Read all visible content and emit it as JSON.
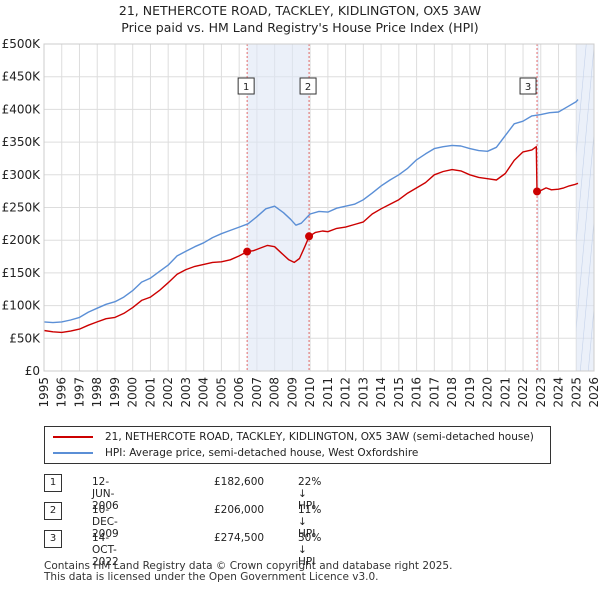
{
  "title_line1": "21, NETHERCOTE ROAD, TACKLEY, KIDLINGTON, OX5 3AW",
  "title_line2": "Price paid vs. HM Land Registry's House Price Index (HPI)",
  "chart_data": {
    "type": "line",
    "title": "21, NETHERCOTE ROAD, TACKLEY, KIDLINGTON, OX5 3AW — Price paid vs. HM Land Registry's House Price Index (HPI)",
    "xlabel": "",
    "ylabel": "",
    "xlim": [
      1995,
      2026
    ],
    "ylim": [
      0,
      500000
    ],
    "grid": true,
    "x_ticks": [
      "1995",
      "1996",
      "1997",
      "1998",
      "1999",
      "2000",
      "2001",
      "2002",
      "2003",
      "2004",
      "2005",
      "2006",
      "2007",
      "2008",
      "2009",
      "2010",
      "2011",
      "2012",
      "2013",
      "2014",
      "2015",
      "2016",
      "2017",
      "2018",
      "2019",
      "2020",
      "2021",
      "2022",
      "2023",
      "2024",
      "2025",
      "2026"
    ],
    "y_ticks": [
      {
        "value": 0,
        "label": "£0"
      },
      {
        "value": 50000,
        "label": "£50K"
      },
      {
        "value": 100000,
        "label": "£100K"
      },
      {
        "value": 150000,
        "label": "£150K"
      },
      {
        "value": 200000,
        "label": "£200K"
      },
      {
        "value": 250000,
        "label": "£250K"
      },
      {
        "value": 300000,
        "label": "£300K"
      },
      {
        "value": 350000,
        "label": "£350K"
      },
      {
        "value": 400000,
        "label": "£400K"
      },
      {
        "value": 450000,
        "label": "£450K"
      },
      {
        "value": 500000,
        "label": "£500K"
      }
    ],
    "shaded_periods": [
      {
        "label": "1",
        "x": [
          2006.45,
          2009.95
        ]
      },
      {
        "label": "2",
        "x": [
          2009.94,
          2009.95
        ]
      }
    ],
    "future_shade": [
      2025.0,
      2026.0
    ],
    "series": [
      {
        "name": "21, NETHERCOTE ROAD, TACKLEY, KIDLINGTON, OX5 3AW (semi-detached house)",
        "color": "#cc0000",
        "x": [
          1995.0,
          1995.5,
          1996.0,
          1996.5,
          1997.0,
          1997.5,
          1998.0,
          1998.5,
          1999.0,
          1999.5,
          2000.0,
          2000.5,
          2001.0,
          2001.5,
          2002.0,
          2002.5,
          2003.0,
          2003.5,
          2004.0,
          2004.5,
          2005.0,
          2005.5,
          2006.0,
          2006.45,
          2006.8,
          2007.2,
          2007.6,
          2008.0,
          2008.4,
          2008.8,
          2009.1,
          2009.4,
          2009.7,
          2009.95,
          2010.3,
          2010.7,
          2011.0,
          2011.5,
          2012.0,
          2012.5,
          2013.0,
          2013.5,
          2014.0,
          2014.5,
          2015.0,
          2015.5,
          2016.0,
          2016.5,
          2017.0,
          2017.5,
          2018.0,
          2018.5,
          2019.0,
          2019.5,
          2020.0,
          2020.5,
          2021.0,
          2021.5,
          2022.0,
          2022.5,
          2022.75,
          2022.79,
          2023.0,
          2023.3,
          2023.6,
          2024.0,
          2024.3,
          2024.6,
          2024.9,
          2025.1
        ],
        "values": [
          62000,
          60000,
          59000,
          61000,
          64000,
          70000,
          75000,
          80000,
          82000,
          88000,
          97000,
          108000,
          113000,
          123000,
          135000,
          148000,
          155000,
          160000,
          163000,
          166000,
          167000,
          170000,
          176000,
          182600,
          184000,
          188000,
          192000,
          190000,
          180000,
          170000,
          166000,
          172000,
          190000,
          206000,
          212000,
          214000,
          213000,
          218000,
          220000,
          224000,
          228000,
          240000,
          248000,
          255000,
          262000,
          272000,
          280000,
          288000,
          300000,
          305000,
          308000,
          306000,
          300000,
          296000,
          294000,
          292000,
          302000,
          322000,
          335000,
          338000,
          343000,
          274500,
          276000,
          280000,
          277000,
          278000,
          280000,
          283000,
          285000,
          287000
        ]
      },
      {
        "name": "HPI: Average price, semi-detached house, West Oxfordshire",
        "color": "#5b8fd6",
        "x": [
          1995.0,
          1995.5,
          1996.0,
          1996.5,
          1997.0,
          1997.5,
          1998.0,
          1998.5,
          1999.0,
          1999.5,
          2000.0,
          2000.5,
          2001.0,
          2001.5,
          2002.0,
          2002.5,
          2003.0,
          2003.5,
          2004.0,
          2004.5,
          2005.0,
          2005.5,
          2006.0,
          2006.5,
          2007.0,
          2007.5,
          2008.0,
          2008.5,
          2008.9,
          2009.2,
          2009.5,
          2010.0,
          2010.5,
          2011.0,
          2011.5,
          2012.0,
          2012.5,
          2013.0,
          2013.5,
          2014.0,
          2014.5,
          2015.0,
          2015.5,
          2016.0,
          2016.5,
          2017.0,
          2017.5,
          2018.0,
          2018.5,
          2019.0,
          2019.5,
          2020.0,
          2020.5,
          2021.0,
          2021.5,
          2022.0,
          2022.5,
          2023.0,
          2023.5,
          2024.0,
          2024.5,
          2025.0,
          2025.1
        ],
        "values": [
          75000,
          74000,
          75000,
          78000,
          82000,
          90000,
          96000,
          102000,
          106000,
          113000,
          123000,
          136000,
          142000,
          152000,
          162000,
          176000,
          183000,
          190000,
          196000,
          204000,
          210000,
          215000,
          220000,
          225000,
          236000,
          248000,
          252000,
          242000,
          232000,
          223000,
          226000,
          240000,
          244000,
          243000,
          249000,
          252000,
          255000,
          262000,
          272000,
          283000,
          292000,
          300000,
          310000,
          323000,
          332000,
          340000,
          343000,
          345000,
          344000,
          340000,
          337000,
          336000,
          342000,
          360000,
          378000,
          382000,
          390000,
          392000,
          395000,
          396000,
          404000,
          412000,
          415000
        ]
      }
    ],
    "transactions": [
      {
        "label": "1",
        "date": "12-JUN-2006",
        "x": 2006.45,
        "price": 182600,
        "price_label": "£182,600",
        "hpi_delta": "22% ↓ HPI"
      },
      {
        "label": "2",
        "date": "10-DEC-2009",
        "x": 2009.94,
        "price": 206000,
        "price_label": "£206,000",
        "hpi_delta": "11% ↓ HPI"
      },
      {
        "label": "3",
        "date": "14-OCT-2022",
        "x": 2022.79,
        "price": 274500,
        "price_label": "£274,500",
        "hpi_delta": "30% ↓ HPI"
      }
    ]
  },
  "legend": {
    "property_label": "21, NETHERCOTE ROAD, TACKLEY, KIDLINGTON, OX5 3AW (semi-detached house)",
    "hpi_label": "HPI: Average price, semi-detached house, West Oxfordshire",
    "property_color": "#cc0000",
    "hpi_color": "#5b8fd6"
  },
  "transactions_table": [
    {
      "label": "1",
      "date": "12-JUN-2006",
      "price": "£182,600",
      "hpi_delta": "22% ↓ HPI"
    },
    {
      "label": "2",
      "date": "10-DEC-2009",
      "price": "£206,000",
      "hpi_delta": "11% ↓ HPI"
    },
    {
      "label": "3",
      "date": "14-OCT-2022",
      "price": "£274,500",
      "hpi_delta": "30% ↓ HPI"
    }
  ],
  "footer": {
    "line1": "Contains HM Land Registry data © Crown copyright and database right 2025.",
    "line2": "This data is licensed under the Open Government Licence v3.0."
  }
}
